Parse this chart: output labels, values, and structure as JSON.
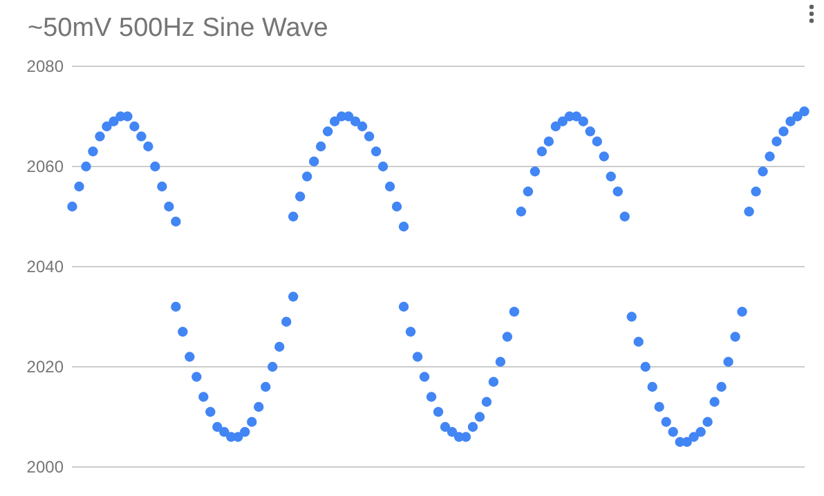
{
  "chart_data": {
    "type": "scatter",
    "title": "~50mV 500Hz Sine Wave",
    "categories": [
      null,
      null,
      null,
      null,
      null,
      null,
      null,
      null,
      null,
      null,
      null,
      null,
      null,
      null,
      null,
      null,
      null,
      null,
      null,
      null,
      null,
      null,
      null,
      null,
      null,
      null,
      null,
      null,
      null,
      null,
      null,
      null,
      null,
      null,
      null,
      null,
      null,
      null,
      null,
      null,
      null,
      null,
      null,
      null,
      null,
      null,
      null,
      null,
      null,
      null,
      null,
      null,
      null,
      null,
      null,
      null,
      null,
      null,
      null,
      null,
      null,
      null,
      null,
      null,
      null,
      null,
      null,
      null,
      null,
      null,
      null,
      null,
      null,
      null,
      null,
      null,
      null,
      null,
      null,
      null,
      null,
      null,
      null,
      null,
      null,
      null,
      null,
      null,
      null,
      null,
      null,
      null,
      null,
      null,
      null,
      null,
      null,
      null,
      null,
      null,
      null,
      null,
      null,
      null,
      null,
      null,
      null
    ],
    "series": [
      {
        "color": "#4285f4",
        "values": [
          2052,
          2056,
          2060,
          2063,
          2066,
          2068,
          2069,
          2070,
          2070,
          2068,
          2066,
          2064,
          2060,
          2056,
          2052,
          2049,
          null,
          null,
          null,
          null,
          null,
          null,
          null,
          null,
          null,
          null,
          null,
          null,
          null,
          null,
          null,
          null,
          2050,
          2054,
          2058,
          2061,
          2064,
          2067,
          2069,
          2070,
          2070,
          2069,
          2068,
          2066,
          2063,
          2060,
          2056,
          2052,
          2048,
          null,
          null,
          null,
          null,
          null,
          null,
          null,
          null,
          null,
          null,
          null,
          null,
          null,
          null,
          null,
          null,
          2051,
          2055,
          2059,
          2063,
          2065,
          2068,
          2069,
          2070,
          2070,
          2069,
          2067,
          2065,
          2062,
          2058,
          2055,
          2050,
          null,
          null,
          null,
          null,
          null,
          null,
          null,
          null,
          null,
          null,
          null,
          null,
          null,
          null,
          null,
          null,
          null,
          2051,
          2055,
          2059,
          2062,
          2065,
          2067,
          2069,
          2070,
          2071
        ]
      },
      {
        "color": "#4285f4",
        "values": [
          null,
          null,
          null,
          null,
          null,
          null,
          null,
          null,
          null,
          null,
          null,
          null,
          null,
          null,
          null,
          2032,
          2027,
          2022,
          2018,
          2014,
          2011,
          2008,
          2007,
          2006,
          2006,
          2007,
          2009,
          2012,
          2016,
          2020,
          2024,
          2029,
          2034,
          null,
          null,
          null,
          null,
          null,
          null,
          null,
          null,
          null,
          null,
          null,
          null,
          null,
          null,
          null,
          2032,
          2027,
          2022,
          2018,
          2014,
          2011,
          2008,
          2007,
          2006,
          2006,
          2008,
          2010,
          2013,
          2017,
          2021,
          2026,
          2031,
          null,
          null,
          null,
          null,
          null,
          null,
          null,
          null,
          null,
          null,
          null,
          null,
          null,
          null,
          null,
          null,
          2030,
          2025,
          2020,
          2016,
          2012,
          2009,
          2007,
          2005,
          2005,
          2006,
          2007,
          2009,
          2013,
          2016,
          2021,
          2026,
          2031,
          null,
          null,
          null,
          null,
          null,
          null,
          null,
          null,
          null
        ]
      }
    ],
    "ylim": [
      2000,
      2080
    ],
    "yticks": [
      2000,
      2020,
      2040,
      2060,
      2080
    ],
    "grid": "y",
    "marker": "circle"
  }
}
